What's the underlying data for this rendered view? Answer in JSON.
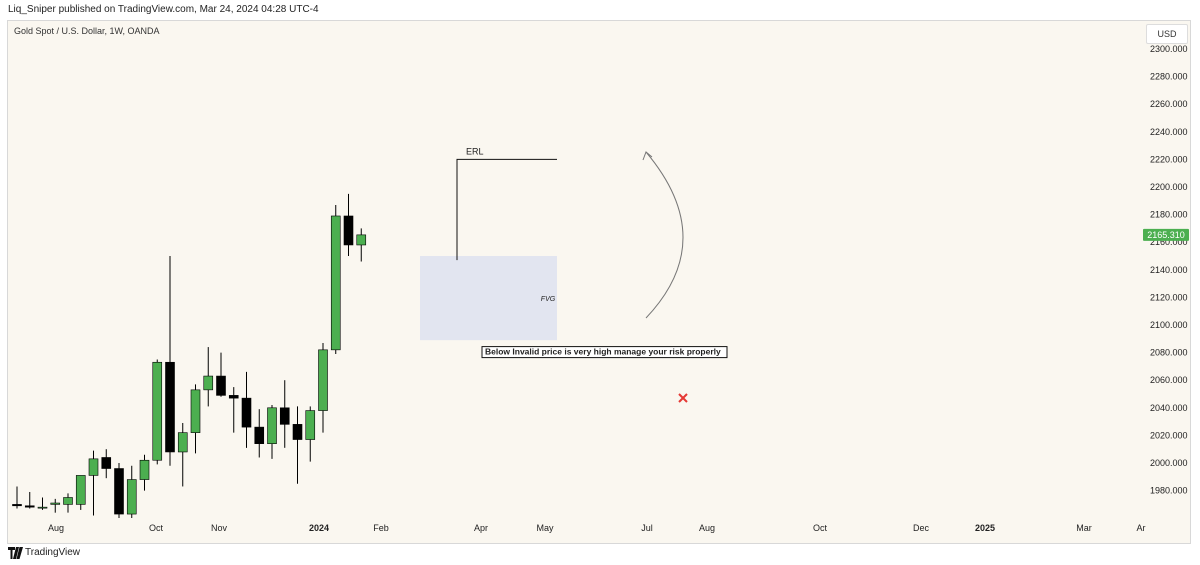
{
  "header": {
    "text": "Liq_Sniper published on TradingView.com, Mar 24, 2024 04:28 UTC-4"
  },
  "symbol": {
    "text": "Gold Spot / U.S. Dollar, 1W, OANDA"
  },
  "currency": {
    "text": "USD"
  },
  "footer": {
    "brand": "TradingView",
    "logo_icon": "tradingview-logo-icon"
  },
  "colors": {
    "bull": "#4caf50",
    "bear": "#000000",
    "wick": "#000000",
    "fvg_fill": "#dde2f0",
    "price_label": "#4caf50",
    "x_mark": "#e53935",
    "background": "#faf7f0"
  },
  "chart_data": {
    "type": "candlestick",
    "title": "",
    "xlabel": "",
    "ylabel": "",
    "ylim": [
      1967,
      2303
    ],
    "grid": false,
    "y_ticks": [
      "2300.000",
      "2280.000",
      "2260.000",
      "2240.000",
      "2220.000",
      "2200.000",
      "2180.000",
      "2160.000",
      "2140.000",
      "2120.000",
      "2100.000",
      "2080.000",
      "2060.000",
      "2040.000",
      "2020.000",
      "2000.000",
      "1980.000"
    ],
    "x_ticks": [
      {
        "label": "Aug",
        "bold": false
      },
      {
        "label": "Oct",
        "bold": false
      },
      {
        "label": "Nov",
        "bold": false
      },
      {
        "label": "2024",
        "bold": true
      },
      {
        "label": "Feb",
        "bold": false
      },
      {
        "label": "Apr",
        "bold": false
      },
      {
        "label": "May",
        "bold": false
      },
      {
        "label": "Jul",
        "bold": false
      },
      {
        "label": "Aug",
        "bold": false
      },
      {
        "label": "Oct",
        "bold": false
      },
      {
        "label": "Dec",
        "bold": false
      },
      {
        "label": "2025",
        "bold": true
      },
      {
        "label": "Mar",
        "bold": false
      },
      {
        "label": "Ar",
        "bold": false
      }
    ],
    "last_price": "2165.310",
    "last_price_value": 2165.31,
    "candles": [
      {
        "o": 1970,
        "h": 1983,
        "l": 1967,
        "c": 1969
      },
      {
        "o": 1969,
        "h": 1979,
        "l": 1967,
        "c": 1968
      },
      {
        "o": 1968,
        "h": 1975,
        "l": 1966,
        "c": 1968
      },
      {
        "o": 1970,
        "h": 1974,
        "l": 1964,
        "c": 1971
      },
      {
        "o": 1970,
        "h": 1978,
        "l": 1964,
        "c": 1975
      },
      {
        "o": 1970,
        "h": 1991,
        "l": 1966,
        "c": 1991
      },
      {
        "o": 1991,
        "h": 2009,
        "l": 1962,
        "c": 2003
      },
      {
        "o": 2004,
        "h": 2010,
        "l": 1989,
        "c": 1996
      },
      {
        "o": 1996,
        "h": 2000,
        "l": 1958,
        "c": 1963
      },
      {
        "o": 1963,
        "h": 1998,
        "l": 1958,
        "c": 1988
      },
      {
        "o": 1988,
        "h": 2006,
        "l": 1980,
        "c": 2002
      },
      {
        "o": 2002,
        "h": 2075,
        "l": 1999,
        "c": 2073
      },
      {
        "o": 2073,
        "h": 2150,
        "l": 1998,
        "c": 2008
      },
      {
        "o": 2008,
        "h": 2029,
        "l": 1983,
        "c": 2022
      },
      {
        "o": 2022,
        "h": 2057,
        "l": 2007,
        "c": 2053
      },
      {
        "o": 2053,
        "h": 2084,
        "l": 2041,
        "c": 2063
      },
      {
        "o": 2063,
        "h": 2080,
        "l": 2048,
        "c": 2049
      },
      {
        "o": 2049,
        "h": 2055,
        "l": 2022,
        "c": 2047
      },
      {
        "o": 2047,
        "h": 2066,
        "l": 2011,
        "c": 2026
      },
      {
        "o": 2026,
        "h": 2039,
        "l": 2004,
        "c": 2014
      },
      {
        "o": 2014,
        "h": 2042,
        "l": 2003,
        "c": 2040
      },
      {
        "o": 2040,
        "h": 2060,
        "l": 2011,
        "c": 2028
      },
      {
        "o": 2028,
        "h": 2041,
        "l": 1985,
        "c": 2017
      },
      {
        "o": 2017,
        "h": 2041,
        "l": 2001,
        "c": 2038
      },
      {
        "o": 2038,
        "h": 2087,
        "l": 2022,
        "c": 2082
      },
      {
        "o": 2082,
        "h": 2187,
        "l": 2079,
        "c": 2179
      },
      {
        "o": 2179,
        "h": 2195,
        "l": 2150,
        "c": 2158
      },
      {
        "o": 2158,
        "h": 2170,
        "l": 2146,
        "c": 2165.31
      }
    ],
    "annotations": [
      {
        "type": "label",
        "text": "ERL",
        "price": 2220
      },
      {
        "type": "zone",
        "text": "FVG",
        "price_top": 2150,
        "price_bottom": 2089
      },
      {
        "type": "label",
        "text": "Below Invalid price is very high manage your risk properly",
        "price": 2080
      }
    ]
  }
}
